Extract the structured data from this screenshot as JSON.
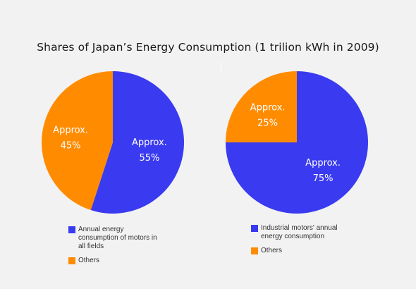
{
  "title": "Shares of Japan’s Energy Consumption (1 trilion kWh in 2009)",
  "colors": {
    "blue": "#3a3af0",
    "orange": "#ff8c00",
    "background": "#f2f2f2"
  },
  "chart_data": [
    {
      "type": "pie",
      "title": "Shares of Japan’s Energy Consumption (1 trilion kWh in 2009)",
      "slices": [
        {
          "legend": "Annual energy\nconsumption of motors in\nall fields",
          "value": 55,
          "label_line1": "Approx.",
          "label_line2": "55%",
          "color": "#3a3af0"
        },
        {
          "legend": "Others",
          "value": 45,
          "label_line1": "Approx.",
          "label_line2": "45%",
          "color": "#ff8c00"
        }
      ],
      "legend_position": "bottom"
    },
    {
      "type": "pie",
      "slices": [
        {
          "legend": "Industrial motors' annual\nenergy consumption",
          "value": 75,
          "label_line1": "Approx.",
          "label_line2": "75%",
          "color": "#3a3af0"
        },
        {
          "legend": "Others",
          "value": 25,
          "label_line1": "Approx.",
          "label_line2": "25%",
          "color": "#ff8c00"
        }
      ],
      "legend_position": "bottom"
    }
  ]
}
